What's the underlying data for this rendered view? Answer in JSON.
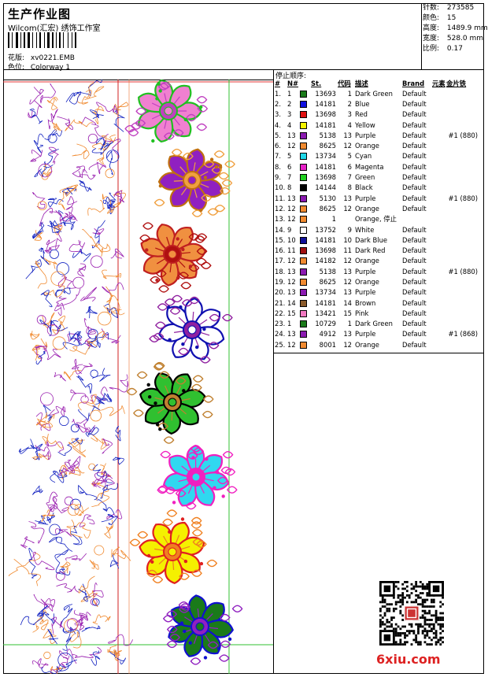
{
  "header": {
    "title": "生产作业图",
    "company": "Wilcom(汇宏) 绣饰工作室",
    "design_label": "花版:",
    "design_value": "xv0221.EMB",
    "colorway_label": "色位:",
    "colorway_value": "Colorway 1"
  },
  "stats": [
    {
      "label": "针数:",
      "value": "273585"
    },
    {
      "label": "颜色:",
      "value": "15"
    },
    {
      "label": "高度:",
      "value": "1489.9 mm"
    },
    {
      "label": "宽度:",
      "value": "528.0 mm"
    },
    {
      "label": "比例:",
      "value": "0.17"
    }
  ],
  "stop_sequence": {
    "title": "停止顺序:",
    "headers": {
      "seq": "#",
      "n": "N#",
      "st": "St.",
      "code": "代码",
      "desc": "描述",
      "brand": "Brand",
      "elem": "元素",
      "seq2": "金片铁"
    },
    "rows": [
      {
        "seq": "1.",
        "n": "1",
        "color": "#1a7a1a",
        "st": "13693",
        "code": "1",
        "desc": "Dark Green",
        "brand": "Default",
        "elem": "",
        "seq2": ""
      },
      {
        "seq": "2.",
        "n": "2",
        "color": "#1010e0",
        "st": "14181",
        "code": "2",
        "desc": "Blue",
        "brand": "Default",
        "elem": "",
        "seq2": ""
      },
      {
        "seq": "3.",
        "n": "3",
        "color": "#e01010",
        "st": "13698",
        "code": "3",
        "desc": "Red",
        "brand": "Default",
        "elem": "",
        "seq2": ""
      },
      {
        "seq": "4.",
        "n": "4",
        "color": "#f5f500",
        "st": "14181",
        "code": "4",
        "desc": "Yellow",
        "brand": "Default",
        "elem": "",
        "seq2": ""
      },
      {
        "seq": "5.",
        "n": "13",
        "color": "#8a1ab0",
        "st": "5138",
        "code": "13",
        "desc": "Purple",
        "brand": "Default",
        "elem": "",
        "seq2": "#1 (880)"
      },
      {
        "seq": "6.",
        "n": "12",
        "color": "#f08a30",
        "st": "8625",
        "code": "12",
        "desc": "Orange",
        "brand": "Default",
        "elem": "",
        "seq2": ""
      },
      {
        "seq": "7.",
        "n": "5",
        "color": "#20d8e8",
        "st": "13734",
        "code": "5",
        "desc": "Cyan",
        "brand": "Default",
        "elem": "",
        "seq2": ""
      },
      {
        "seq": "8.",
        "n": "6",
        "color": "#e820c8",
        "st": "14181",
        "code": "6",
        "desc": "Magenta",
        "brand": "Default",
        "elem": "",
        "seq2": ""
      },
      {
        "seq": "9.",
        "n": "7",
        "color": "#20d020",
        "st": "13698",
        "code": "7",
        "desc": "Green",
        "brand": "Default",
        "elem": "",
        "seq2": ""
      },
      {
        "seq": "10.",
        "n": "8",
        "color": "#000000",
        "st": "14144",
        "code": "8",
        "desc": "Black",
        "brand": "Default",
        "elem": "",
        "seq2": ""
      },
      {
        "seq": "11.",
        "n": "13",
        "color": "#8a1ab0",
        "st": "5130",
        "code": "13",
        "desc": "Purple",
        "brand": "Default",
        "elem": "",
        "seq2": "#1 (880)"
      },
      {
        "seq": "12.",
        "n": "12",
        "color": "#f08a30",
        "st": "8625",
        "code": "12",
        "desc": "Orange",
        "brand": "Default",
        "elem": "",
        "seq2": ""
      },
      {
        "seq": "13.",
        "n": "12",
        "color": "#f08a30",
        "st": "1",
        "code": "",
        "desc": "Orange, 停止",
        "brand": "",
        "elem": "",
        "seq2": ""
      },
      {
        "seq": "14.",
        "n": "9",
        "color": "#ffffff",
        "st": "13752",
        "code": "9",
        "desc": "White",
        "brand": "Default",
        "elem": "",
        "seq2": ""
      },
      {
        "seq": "15.",
        "n": "10",
        "color": "#10109a",
        "st": "14181",
        "code": "10",
        "desc": "Dark Blue",
        "brand": "Default",
        "elem": "",
        "seq2": ""
      },
      {
        "seq": "16.",
        "n": "11",
        "color": "#a01010",
        "st": "13698",
        "code": "11",
        "desc": "Dark Red",
        "brand": "Default",
        "elem": "",
        "seq2": ""
      },
      {
        "seq": "17.",
        "n": "12",
        "color": "#f08a30",
        "st": "14182",
        "code": "12",
        "desc": "Orange",
        "brand": "Default",
        "elem": "",
        "seq2": ""
      },
      {
        "seq": "18.",
        "n": "13",
        "color": "#8a1ab0",
        "st": "5138",
        "code": "13",
        "desc": "Purple",
        "brand": "Default",
        "elem": "",
        "seq2": "#1 (880)"
      },
      {
        "seq": "19.",
        "n": "12",
        "color": "#f08a30",
        "st": "8625",
        "code": "12",
        "desc": "Orange",
        "brand": "Default",
        "elem": "",
        "seq2": ""
      },
      {
        "seq": "20.",
        "n": "13",
        "color": "#8a1ab0",
        "st": "13734",
        "code": "13",
        "desc": "Purple",
        "brand": "Default",
        "elem": "",
        "seq2": ""
      },
      {
        "seq": "21.",
        "n": "14",
        "color": "#8a5a2a",
        "st": "14181",
        "code": "14",
        "desc": "Brown",
        "brand": "Default",
        "elem": "",
        "seq2": ""
      },
      {
        "seq": "22.",
        "n": "15",
        "color": "#f078c0",
        "st": "13421",
        "code": "15",
        "desc": "Pink",
        "brand": "Default",
        "elem": "",
        "seq2": ""
      },
      {
        "seq": "23.",
        "n": "1",
        "color": "#1a7a1a",
        "st": "10729",
        "code": "1",
        "desc": "Dark Green",
        "brand": "Default",
        "elem": "",
        "seq2": ""
      },
      {
        "seq": "24.",
        "n": "13",
        "color": "#8a1ab0",
        "st": "4912",
        "code": "13",
        "desc": "Purple",
        "brand": "Default",
        "elem": "",
        "seq2": "#1 (868)"
      },
      {
        "seq": "25.",
        "n": "12",
        "color": "#f08a30",
        "st": "8001",
        "code": "12",
        "desc": "Orange",
        "brand": "Default",
        "elem": "",
        "seq2": ""
      }
    ]
  },
  "flowers": [
    {
      "fill": "#f080d0",
      "outline": "#20c020",
      "accent": "#c040c0"
    },
    {
      "fill": "#9020c0",
      "outline": "#c07010",
      "accent": "#f0a040"
    },
    {
      "fill": "#f09040",
      "outline": "#c02020",
      "accent": "#b01010"
    },
    {
      "fill": "#ffffff",
      "outline": "#1010b0",
      "accent": "#9020a0"
    },
    {
      "fill": "#30c030",
      "outline": "#000000",
      "accent": "#c08030"
    },
    {
      "fill": "#30d8f0",
      "outline": "#f020c0",
      "accent": "#f020c0"
    },
    {
      "fill": "#f5f000",
      "outline": "#e02020",
      "accent": "#f08020"
    },
    {
      "fill": "#1a7a1a",
      "outline": "#1010d0",
      "accent": "#9020c0"
    }
  ],
  "watermark": "6xiu.com"
}
